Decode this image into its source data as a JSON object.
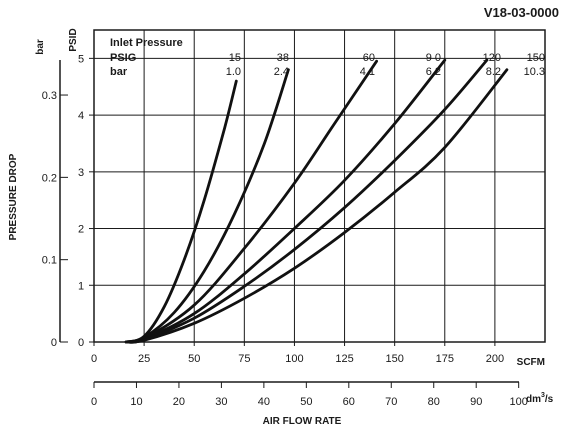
{
  "chart_data": {
    "type": "line",
    "code": "V18-03-0000",
    "xlabel": "AIR FLOW RATE",
    "ylabel": "PRESSURE DROP",
    "primary_x": {
      "unit": "SCFM",
      "ticks": [
        "0",
        "25",
        "50",
        "75",
        "100",
        "125",
        "150",
        "175",
        "200"
      ],
      "range": [
        0,
        225
      ]
    },
    "secondary_x": {
      "unit": "dm³/s",
      "unit_base": "dm",
      "unit_sup": "3",
      "unit_tail": "/s",
      "ticks": [
        "0",
        "10",
        "20",
        "30",
        "40",
        "50",
        "60",
        "70",
        "80",
        "90",
        "100"
      ],
      "range": [
        0,
        106.2
      ]
    },
    "primary_y": {
      "unit": "PSID",
      "ticks": [
        "0",
        "1",
        "2",
        "3",
        "4",
        "5"
      ],
      "range": [
        0,
        5.5
      ]
    },
    "secondary_y": {
      "unit": "bar",
      "ticks": [
        "0",
        "0.1",
        "0.2",
        "0.3"
      ],
      "range": [
        0,
        0.379
      ]
    },
    "legend": {
      "title": "Inlet Pressure",
      "row1_label": "PSIG",
      "row2_label": "bar",
      "psig": [
        "15",
        "38",
        "60",
        "9 0",
        "120",
        "150"
      ],
      "bar": [
        "1.0",
        "2.4",
        "4.1",
        "6.2",
        "8.2",
        "10.3"
      ]
    },
    "grid": true,
    "series": [
      {
        "psig": 15,
        "x": [
          16,
          25,
          35,
          45,
          55,
          65,
          71
        ],
        "y": [
          0,
          0.1,
          0.62,
          1.45,
          2.5,
          3.75,
          4.6
        ]
      },
      {
        "psig": 38,
        "x": [
          16,
          25,
          40,
          55,
          70,
          85,
          97
        ],
        "y": [
          0,
          0.08,
          0.52,
          1.25,
          2.25,
          3.5,
          4.8
        ]
      },
      {
        "psig": 60,
        "x": [
          16,
          25,
          50,
          75,
          100,
          120,
          141
        ],
        "y": [
          0,
          0.06,
          0.65,
          1.65,
          2.8,
          3.85,
          4.95
        ]
      },
      {
        "psig": 90,
        "x": [
          16,
          25,
          50,
          75,
          100,
          125,
          150,
          175
        ],
        "y": [
          0,
          0.05,
          0.5,
          1.2,
          2.0,
          2.85,
          3.85,
          4.97
        ]
      },
      {
        "psig": 120,
        "x": [
          16,
          25,
          50,
          75,
          100,
          125,
          150,
          175,
          196
        ],
        "y": [
          0,
          0.04,
          0.42,
          0.98,
          1.63,
          2.37,
          3.2,
          4.1,
          4.97
        ]
      },
      {
        "psig": 150,
        "x": [
          16,
          25,
          50,
          75,
          100,
          125,
          150,
          175,
          206
        ],
        "y": [
          0,
          0.03,
          0.33,
          0.77,
          1.3,
          1.93,
          2.64,
          3.43,
          4.8
        ]
      }
    ]
  }
}
